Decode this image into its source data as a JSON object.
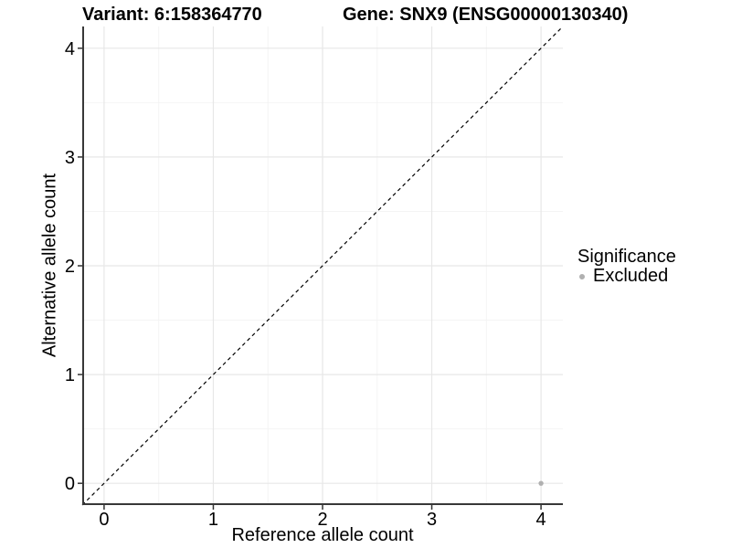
{
  "chart_data": {
    "type": "scatter",
    "title_left": "Variant: 6:158364770",
    "title_right": "Gene: SNX9 (ENSG00000130340)",
    "xlabel": "Reference allele count",
    "ylabel": "Alternative allele count",
    "xlim": [
      -0.2,
      4.2
    ],
    "ylim": [
      -0.2,
      4.2
    ],
    "x_ticks": [
      0,
      1,
      2,
      3,
      4
    ],
    "y_ticks": [
      0,
      1,
      2,
      3,
      4
    ],
    "x_minor_ticks": [
      0.5,
      1.5,
      2.5,
      3.5
    ],
    "y_minor_ticks": [
      0.5,
      1.5,
      2.5,
      3.5
    ],
    "grid": true,
    "identity_line": {
      "from": [
        -0.2,
        -0.2
      ],
      "to": [
        4.2,
        4.2
      ],
      "style": "dashed",
      "color": "#000000"
    },
    "series": [
      {
        "name": "Excluded",
        "color": "#b0b0b0",
        "points": [
          {
            "x": 4,
            "y": 0
          }
        ]
      }
    ],
    "legend": {
      "title": "Significance",
      "position": "right",
      "entries": [
        {
          "label": "Excluded",
          "color": "#b0b0b0"
        }
      ]
    },
    "colors": {
      "background": "#ffffff",
      "grid_major": "#e7e7e7",
      "grid_minor": "#f4f4f4",
      "axis_line": "#383838",
      "tick_mark": "#333333",
      "text": "#000000",
      "point": "#b0b0b0"
    }
  }
}
